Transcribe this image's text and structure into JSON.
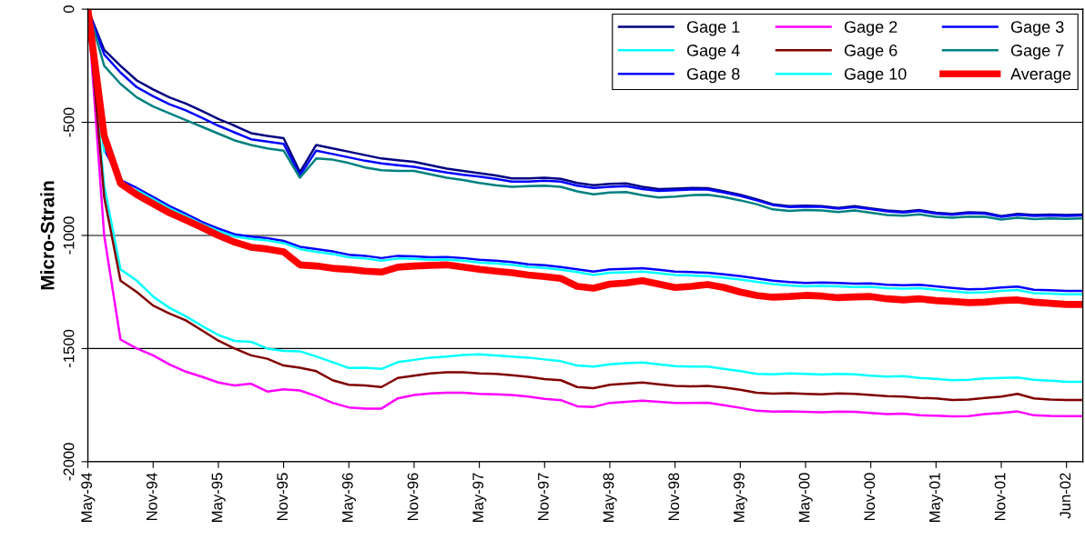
{
  "chart_data": {
    "type": "line",
    "ylabel": "Micro-Strain",
    "categories": [
      "May-94",
      null,
      null,
      null,
      "Nov-94",
      null,
      null,
      null,
      "May-95",
      null,
      null,
      null,
      "Nov-95",
      null,
      null,
      null,
      "May-96",
      null,
      null,
      null,
      "Nov-96",
      null,
      null,
      null,
      "May-97",
      null,
      null,
      null,
      "Nov-97",
      null,
      null,
      null,
      "May-98",
      null,
      null,
      null,
      "Nov-98",
      null,
      null,
      null,
      "May-99",
      null,
      null,
      null,
      "May-00",
      null,
      null,
      null,
      "Nov-00",
      null,
      null,
      null,
      "May-01",
      null,
      null,
      null,
      "Nov-01",
      null,
      null,
      null,
      "Jun-02",
      null
    ],
    "ylim": [
      -2000,
      0
    ],
    "yticks": [
      -2000,
      -1500,
      -1000,
      -500,
      0
    ],
    "grid": "y",
    "legend": "top right",
    "marker": "none",
    "line_style": "solid",
    "series": [
      {
        "name": "Gage 1",
        "color": "#000080",
        "values": [
          0,
          -180,
          -250,
          -315,
          -355,
          -390,
          -417,
          -450,
          -485,
          -515,
          -548,
          -560,
          -570,
          -720,
          -600,
          -615,
          -630,
          -645,
          -660,
          -668,
          -675,
          -690,
          -705,
          -715,
          -725,
          -735,
          -748,
          -748,
          -745,
          -750,
          -768,
          -778,
          -772,
          -770,
          -785,
          -795,
          -793,
          -790,
          -791,
          -805,
          -820,
          -840,
          -862,
          -870,
          -868,
          -870,
          -878,
          -870,
          -880,
          -890,
          -895,
          -888,
          -900,
          -905,
          -898,
          -900,
          -915,
          -905,
          -910,
          -908,
          -910,
          -908
        ]
      },
      {
        "name": "Gage 2",
        "color": "#ff00ff",
        "values": [
          0,
          -1000,
          -1460,
          -1500,
          -1530,
          -1570,
          -1602,
          -1625,
          -1650,
          -1663,
          -1655,
          -1690,
          -1680,
          -1685,
          -1710,
          -1740,
          -1760,
          -1765,
          -1765,
          -1720,
          -1705,
          -1698,
          -1695,
          -1695,
          -1700,
          -1702,
          -1705,
          -1712,
          -1722,
          -1728,
          -1755,
          -1758,
          -1740,
          -1735,
          -1730,
          -1735,
          -1740,
          -1740,
          -1739,
          -1750,
          -1762,
          -1775,
          -1779,
          -1778,
          -1780,
          -1782,
          -1779,
          -1780,
          -1785,
          -1790,
          -1788,
          -1795,
          -1797,
          -1800,
          -1799,
          -1790,
          -1785,
          -1778,
          -1795,
          -1798,
          -1799,
          -1799
        ]
      },
      {
        "name": "Gage 3",
        "color": "#0000ff",
        "values": [
          0,
          -200,
          -280,
          -345,
          -385,
          -420,
          -447,
          -480,
          -515,
          -545,
          -575,
          -585,
          -595,
          -735,
          -625,
          -640,
          -655,
          -670,
          -682,
          -690,
          -697,
          -710,
          -722,
          -732,
          -740,
          -750,
          -762,
          -762,
          -758,
          -762,
          -780,
          -790,
          -785,
          -782,
          -795,
          -803,
          -800,
          -797,
          -797,
          -810,
          -825,
          -845,
          -866,
          -875,
          -872,
          -874,
          -882,
          -875,
          -884,
          -894,
          -899,
          -892,
          -904,
          -909,
          -902,
          -904,
          -918,
          -909,
          -914,
          -912,
          -914,
          -912
        ]
      },
      {
        "name": "Gage 4",
        "color": "#00ffff",
        "values": [
          0,
          -780,
          -1150,
          -1200,
          -1270,
          -1320,
          -1357,
          -1400,
          -1440,
          -1466,
          -1470,
          -1500,
          -1510,
          -1512,
          -1535,
          -1560,
          -1586,
          -1585,
          -1590,
          -1560,
          -1550,
          -1540,
          -1535,
          -1528,
          -1525,
          -1530,
          -1535,
          -1540,
          -1548,
          -1556,
          -1575,
          -1580,
          -1570,
          -1565,
          -1562,
          -1570,
          -1578,
          -1580,
          -1580,
          -1590,
          -1600,
          -1612,
          -1614,
          -1610,
          -1612,
          -1615,
          -1612,
          -1614,
          -1620,
          -1624,
          -1622,
          -1630,
          -1634,
          -1640,
          -1638,
          -1632,
          -1630,
          -1628,
          -1638,
          -1642,
          -1647,
          -1647
        ]
      },
      {
        "name": "Gage 6",
        "color": "#800000",
        "values": [
          0,
          -830,
          -1200,
          -1250,
          -1310,
          -1345,
          -1375,
          -1420,
          -1465,
          -1500,
          -1530,
          -1545,
          -1575,
          -1585,
          -1600,
          -1640,
          -1660,
          -1663,
          -1670,
          -1630,
          -1620,
          -1610,
          -1605,
          -1605,
          -1610,
          -1612,
          -1618,
          -1625,
          -1635,
          -1640,
          -1670,
          -1675,
          -1660,
          -1655,
          -1650,
          -1658,
          -1665,
          -1667,
          -1665,
          -1672,
          -1682,
          -1695,
          -1699,
          -1697,
          -1700,
          -1702,
          -1698,
          -1700,
          -1705,
          -1710,
          -1712,
          -1718,
          -1720,
          -1727,
          -1725,
          -1718,
          -1712,
          -1700,
          -1720,
          -1725,
          -1727,
          -1727
        ]
      },
      {
        "name": "Gage 7",
        "color": "#008080",
        "values": [
          0,
          -250,
          -330,
          -390,
          -430,
          -460,
          -490,
          -520,
          -550,
          -580,
          -600,
          -615,
          -625,
          -745,
          -660,
          -665,
          -680,
          -700,
          -712,
          -715,
          -715,
          -730,
          -745,
          -755,
          -768,
          -778,
          -785,
          -782,
          -780,
          -785,
          -805,
          -818,
          -810,
          -808,
          -822,
          -832,
          -828,
          -822,
          -820,
          -830,
          -845,
          -862,
          -885,
          -892,
          -888,
          -890,
          -897,
          -890,
          -900,
          -910,
          -913,
          -907,
          -918,
          -922,
          -917,
          -918,
          -930,
          -922,
          -928,
          -925,
          -927,
          -925
        ]
      },
      {
        "name": "Gage 8",
        "color": "#0000ff",
        "values": [
          0,
          -620,
          -755,
          -790,
          -830,
          -870,
          -904,
          -940,
          -970,
          -995,
          -1005,
          -1012,
          -1024,
          -1050,
          -1060,
          -1070,
          -1085,
          -1090,
          -1100,
          -1090,
          -1092,
          -1096,
          -1095,
          -1100,
          -1108,
          -1112,
          -1118,
          -1128,
          -1132,
          -1140,
          -1150,
          -1160,
          -1150,
          -1148,
          -1145,
          -1152,
          -1160,
          -1162,
          -1165,
          -1172,
          -1180,
          -1190,
          -1200,
          -1206,
          -1210,
          -1208,
          -1210,
          -1213,
          -1212,
          -1218,
          -1220,
          -1218,
          -1225,
          -1232,
          -1238,
          -1236,
          -1230,
          -1226,
          -1240,
          -1242,
          -1245,
          -1245
        ]
      },
      {
        "name": "Gage 10",
        "color": "#00ffff",
        "values": [
          0,
          -630,
          null,
          -800,
          -840,
          -880,
          -914,
          -950,
          -980,
          -1005,
          -1015,
          -1022,
          -1034,
          -1060,
          -1072,
          -1082,
          -1097,
          -1102,
          -1112,
          -1102,
          -1104,
          -1108,
          -1107,
          -1112,
          -1120,
          -1124,
          -1130,
          -1140,
          -1144,
          -1152,
          -1162,
          -1175,
          -1165,
          -1163,
          -1160,
          -1167,
          -1175,
          -1177,
          -1180,
          -1187,
          -1195,
          -1205,
          -1215,
          -1221,
          -1225,
          -1223,
          -1225,
          -1228,
          -1227,
          -1233,
          -1235,
          -1233,
          -1240,
          -1247,
          -1253,
          -1251,
          -1245,
          -1241,
          -1255,
          -1257,
          -1260,
          -1260
        ]
      },
      {
        "name": "Average",
        "color": "#ff0000",
        "values": [
          0,
          -560,
          -770,
          -820,
          -860,
          -900,
          -932,
          -965,
          -1000,
          -1030,
          -1052,
          -1060,
          -1072,
          -1130,
          -1135,
          -1145,
          -1150,
          -1158,
          -1162,
          -1140,
          -1135,
          -1132,
          -1130,
          -1140,
          -1150,
          -1158,
          -1165,
          -1175,
          -1182,
          -1190,
          -1225,
          -1233,
          -1215,
          -1210,
          -1200,
          -1215,
          -1230,
          -1225,
          -1217,
          -1230,
          -1250,
          -1265,
          -1273,
          -1270,
          -1265,
          -1268,
          -1275,
          -1272,
          -1270,
          -1280,
          -1285,
          -1280,
          -1288,
          -1292,
          -1297,
          -1295,
          -1288,
          -1285,
          -1295,
          -1300,
          -1305,
          -1305
        ]
      }
    ]
  }
}
